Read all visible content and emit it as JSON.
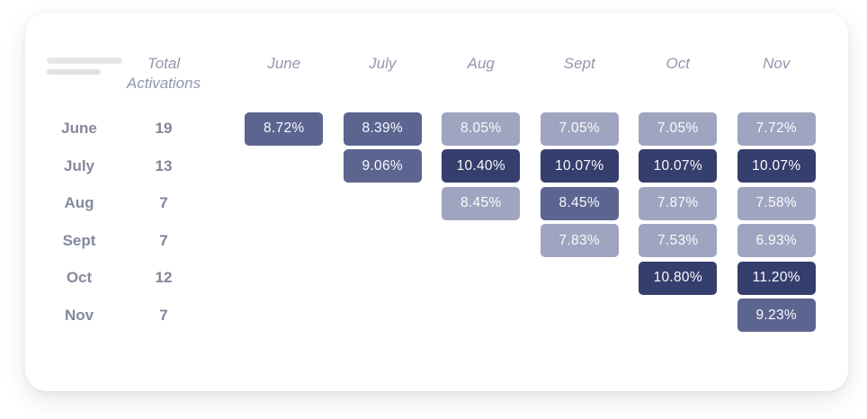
{
  "card": {
    "total_header_label": "Total\nActivations"
  },
  "chart_data": {
    "type": "heatmap",
    "title": "",
    "columns": [
      "June",
      "July",
      "Aug",
      "Sept",
      "Oct",
      "Nov"
    ],
    "total_label": "Total\nActivations",
    "shade_colors": {
      "light": "#9fa5c0",
      "medium": "#5c6490",
      "dark": "#353e6c"
    },
    "rows": [
      {
        "label": "June",
        "total_activations": "19",
        "cells": [
          {
            "value": "8.72%",
            "shade": "medium"
          },
          {
            "value": "8.39%",
            "shade": "medium"
          },
          {
            "value": "8.05%",
            "shade": "light"
          },
          {
            "value": "7.05%",
            "shade": "light"
          },
          {
            "value": "7.05%",
            "shade": "light"
          },
          {
            "value": "7.72%",
            "shade": "light"
          }
        ]
      },
      {
        "label": "July",
        "total_activations": "13",
        "cells": [
          null,
          {
            "value": "9.06%",
            "shade": "medium"
          },
          {
            "value": "10.40%",
            "shade": "dark"
          },
          {
            "value": "10.07%",
            "shade": "dark"
          },
          {
            "value": "10.07%",
            "shade": "dark"
          },
          {
            "value": "10.07%",
            "shade": "dark"
          }
        ]
      },
      {
        "label": "Aug",
        "total_activations": "7",
        "cells": [
          null,
          null,
          {
            "value": "8.45%",
            "shade": "light"
          },
          {
            "value": "8.45%",
            "shade": "medium"
          },
          {
            "value": "7.87%",
            "shade": "light"
          },
          {
            "value": "7.58%",
            "shade": "light"
          }
        ]
      },
      {
        "label": "Sept",
        "total_activations": "7",
        "cells": [
          null,
          null,
          null,
          {
            "value": "7.83%",
            "shade": "light"
          },
          {
            "value": "7.53%",
            "shade": "light"
          },
          {
            "value": "6.93%",
            "shade": "light"
          }
        ]
      },
      {
        "label": "Oct",
        "total_activations": "12",
        "cells": [
          null,
          null,
          null,
          null,
          {
            "value": "10.80%",
            "shade": "dark"
          },
          {
            "value": "11.20%",
            "shade": "dark"
          }
        ]
      },
      {
        "label": "Nov",
        "total_activations": "7",
        "cells": [
          null,
          null,
          null,
          null,
          null,
          {
            "value": "9.23%",
            "shade": "medium"
          }
        ]
      }
    ]
  }
}
